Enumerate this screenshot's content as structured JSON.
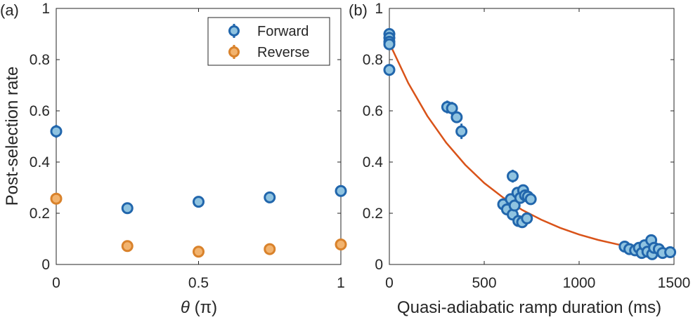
{
  "chart_data": [
    {
      "panel_label": "(a)",
      "type": "scatter",
      "xlabel_symbol": "θ",
      "xlabel_unit": "(π)",
      "ylabel": "Post-selection rate",
      "xlim": [
        0,
        1
      ],
      "ylim": [
        0,
        1
      ],
      "xticks": [
        0,
        0.5,
        1
      ],
      "xtick_labels": [
        "0",
        "0.5",
        "1"
      ],
      "yticks": [
        0,
        0.2,
        0.4,
        0.6,
        0.8,
        1
      ],
      "ytick_labels": [
        "0",
        "0.2",
        "0.4",
        "0.6",
        "0.8",
        "1"
      ],
      "legend_position": "top-right",
      "series": [
        {
          "name": "Forward",
          "color": "#2166ac",
          "fill": "#8fc3e0",
          "points": [
            {
              "x": 0,
              "y": 0.52,
              "err": 0.025
            },
            {
              "x": 0.25,
              "y": 0.22,
              "err": 0.01
            },
            {
              "x": 0.5,
              "y": 0.245,
              "err": 0.01
            },
            {
              "x": 0.75,
              "y": 0.262,
              "err": 0.01
            },
            {
              "x": 1.0,
              "y": 0.287,
              "err": 0.01
            }
          ]
        },
        {
          "name": "Reverse",
          "color": "#d9822b",
          "fill": "#f2b36e",
          "points": [
            {
              "x": 0,
              "y": 0.257,
              "err": 0.02
            },
            {
              "x": 0.25,
              "y": 0.072,
              "err": 0.008
            },
            {
              "x": 0.5,
              "y": 0.05,
              "err": 0.008
            },
            {
              "x": 0.75,
              "y": 0.06,
              "err": 0.008
            },
            {
              "x": 1.0,
              "y": 0.078,
              "err": 0.008
            }
          ]
        }
      ]
    },
    {
      "panel_label": "(b)",
      "type": "scatter",
      "xlabel": "Quasi-adiabatic ramp duration (ms)",
      "ylabel": "",
      "xlim": [
        0,
        1500
      ],
      "ylim": [
        0,
        1
      ],
      "xticks": [
        0,
        500,
        1000,
        1500
      ],
      "xtick_labels": [
        "0",
        "500",
        "1000",
        "1500"
      ],
      "yticks": [
        0,
        0.2,
        0.4,
        0.6,
        0.8,
        1
      ],
      "ytick_labels": [
        "0",
        "0.2",
        "0.4",
        "0.6",
        "0.8",
        "1"
      ],
      "series": [
        {
          "color": "#2166ac",
          "fill": "#8fc3e0",
          "points": [
            {
              "x": 0,
              "y": 0.9,
              "err": 0.012
            },
            {
              "x": 0,
              "y": 0.885,
              "err": 0.012
            },
            {
              "x": 0,
              "y": 0.87,
              "err": 0.012
            },
            {
              "x": 0,
              "y": 0.86,
              "err": 0.012
            },
            {
              "x": 0,
              "y": 0.76,
              "err": 0.015
            },
            {
              "x": 305,
              "y": 0.615,
              "err": 0.025
            },
            {
              "x": 330,
              "y": 0.61,
              "err": 0.025
            },
            {
              "x": 355,
              "y": 0.575,
              "err": 0.02
            },
            {
              "x": 380,
              "y": 0.52,
              "err": 0.03
            },
            {
              "x": 650,
              "y": 0.345,
              "err": 0.025
            },
            {
              "x": 600,
              "y": 0.235,
              "err": 0.015
            },
            {
              "x": 620,
              "y": 0.215,
              "err": 0.012
            },
            {
              "x": 640,
              "y": 0.255,
              "err": 0.012
            },
            {
              "x": 650,
              "y": 0.195,
              "err": 0.012
            },
            {
              "x": 660,
              "y": 0.23,
              "err": 0.012
            },
            {
              "x": 675,
              "y": 0.28,
              "err": 0.012
            },
            {
              "x": 680,
              "y": 0.17,
              "err": 0.012
            },
            {
              "x": 690,
              "y": 0.26,
              "err": 0.012
            },
            {
              "x": 700,
              "y": 0.165,
              "err": 0.012
            },
            {
              "x": 705,
              "y": 0.29,
              "err": 0.012
            },
            {
              "x": 715,
              "y": 0.27,
              "err": 0.012
            },
            {
              "x": 725,
              "y": 0.18,
              "err": 0.012
            },
            {
              "x": 730,
              "y": 0.265,
              "err": 0.012
            },
            {
              "x": 745,
              "y": 0.255,
              "err": 0.012
            },
            {
              "x": 1240,
              "y": 0.07,
              "err": 0.008
            },
            {
              "x": 1265,
              "y": 0.06,
              "err": 0.008
            },
            {
              "x": 1295,
              "y": 0.055,
              "err": 0.008
            },
            {
              "x": 1315,
              "y": 0.065,
              "err": 0.008
            },
            {
              "x": 1330,
              "y": 0.045,
              "err": 0.008
            },
            {
              "x": 1345,
              "y": 0.075,
              "err": 0.008
            },
            {
              "x": 1360,
              "y": 0.05,
              "err": 0.008
            },
            {
              "x": 1380,
              "y": 0.095,
              "err": 0.01
            },
            {
              "x": 1385,
              "y": 0.04,
              "err": 0.008
            },
            {
              "x": 1395,
              "y": 0.065,
              "err": 0.008
            },
            {
              "x": 1420,
              "y": 0.06,
              "err": 0.008
            },
            {
              "x": 1440,
              "y": 0.045,
              "err": 0.008
            },
            {
              "x": 1480,
              "y": 0.048,
              "err": 0.008
            }
          ]
        },
        {
          "type": "line",
          "color": "#d95319",
          "x": [
            0,
            100,
            200,
            300,
            400,
            500,
            600,
            700,
            800,
            900,
            1000,
            1100,
            1200,
            1300,
            1400,
            1480
          ],
          "y": [
            0.865,
            0.708,
            0.58,
            0.475,
            0.389,
            0.318,
            0.261,
            0.213,
            0.175,
            0.143,
            0.117,
            0.096,
            0.079,
            0.064,
            0.053,
            0.045
          ]
        }
      ]
    }
  ]
}
